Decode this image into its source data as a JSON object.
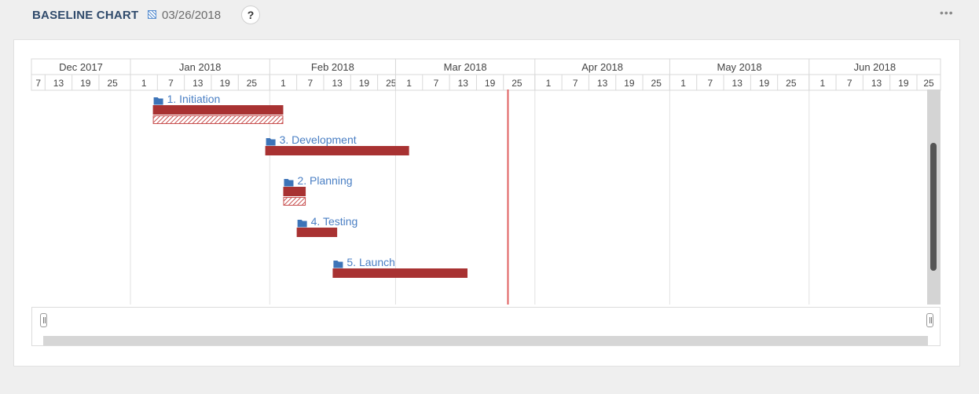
{
  "header": {
    "title": "BASELINE CHART",
    "date": "03/26/2018",
    "help_label": "?",
    "more_label": "•••"
  },
  "colors": {
    "bar": "#a83232",
    "baseline_hatch": "#c8504f",
    "today_line": "#e06060",
    "label": "#4a7fc4",
    "folder_icon": "#3d74b8"
  },
  "chart_data": {
    "type": "gantt",
    "today": "2018-03-26",
    "months": [
      "Dec 2017",
      "Jan 2018",
      "Feb 2018",
      "Mar 2018",
      "Apr 2018",
      "May 2018",
      "Jun 2018"
    ],
    "day_ticks": [
      {
        "month": "Dec 2017",
        "days": [
          "7",
          "13",
          "19",
          "25"
        ]
      },
      {
        "month": "Jan 2018",
        "days": [
          "1",
          "7",
          "13",
          "19",
          "25"
        ]
      },
      {
        "month": "Feb 2018",
        "days": [
          "1",
          "7",
          "13",
          "19",
          "25"
        ]
      },
      {
        "month": "Mar 2018",
        "days": [
          "1",
          "7",
          "13",
          "19",
          "25"
        ]
      },
      {
        "month": "Apr 2018",
        "days": [
          "1",
          "7",
          "13",
          "19",
          "25"
        ]
      },
      {
        "month": "May 2018",
        "days": [
          "1",
          "7",
          "13",
          "19",
          "25"
        ]
      },
      {
        "month": "Jun 2018",
        "days": [
          "1",
          "7",
          "13",
          "19",
          "25"
        ]
      }
    ],
    "tasks": [
      {
        "label": "1. Initiation",
        "start": "2018-01-06",
        "end": "2018-02-04",
        "baseline_start": "2018-01-06",
        "baseline_end": "2018-02-04"
      },
      {
        "label": "3. Development",
        "start": "2018-01-31",
        "end": "2018-03-04",
        "baseline_start": null,
        "baseline_end": null
      },
      {
        "label": "2. Planning",
        "start": "2018-02-04",
        "end": "2018-02-09",
        "baseline_start": "2018-02-04",
        "baseline_end": "2018-02-09"
      },
      {
        "label": "4. Testing",
        "start": "2018-02-07",
        "end": "2018-02-16",
        "baseline_start": null,
        "baseline_end": null
      },
      {
        "label": "5. Launch",
        "start": "2018-02-15",
        "end": "2018-03-17",
        "baseline_start": null,
        "baseline_end": null
      }
    ]
  }
}
